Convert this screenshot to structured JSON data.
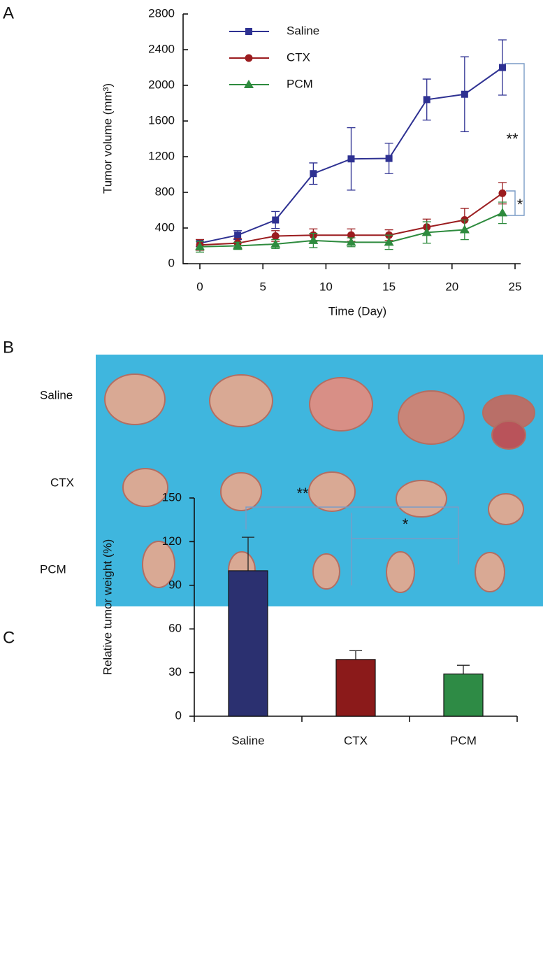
{
  "panel_labels": [
    "A",
    "B",
    "C"
  ],
  "photo": {
    "row_labels": [
      "Saline",
      "CTX",
      "PCM"
    ]
  },
  "chart_data": [
    {
      "type": "line",
      "xlabel": "Time (Day)",
      "ylabel": "Tumor volume (mm³)",
      "x": [
        0,
        3,
        6,
        9,
        12,
        15,
        18,
        21,
        24
      ],
      "series": [
        {
          "name": "Saline",
          "color": "#2e3192",
          "marker": "square",
          "values": [
            230,
            320,
            490,
            1010,
            1175,
            1180,
            1840,
            1900,
            2200
          ],
          "errors": [
            40,
            50,
            95,
            120,
            350,
            170,
            230,
            420,
            310
          ]
        },
        {
          "name": "CTX",
          "color": "#9b1c1f",
          "marker": "circle",
          "values": [
            210,
            230,
            310,
            320,
            320,
            320,
            410,
            490,
            790
          ],
          "errors": [
            60,
            50,
            60,
            70,
            70,
            60,
            90,
            130,
            120
          ]
        },
        {
          "name": "PCM",
          "color": "#2e8b3e",
          "marker": "triangle",
          "values": [
            190,
            200,
            220,
            260,
            240,
            240,
            350,
            380,
            570
          ],
          "errors": [
            60,
            40,
            50,
            80,
            50,
            80,
            120,
            110,
            120
          ]
        }
      ],
      "xlim": [
        0,
        25
      ],
      "xticks": [
        0,
        5,
        10,
        15,
        20,
        25
      ],
      "ylim": [
        0,
        2800
      ],
      "yticks": [
        0,
        400,
        800,
        1200,
        1600,
        2000,
        2400,
        2800
      ],
      "legend": "upper left",
      "annotations": [
        "**",
        "*"
      ]
    },
    {
      "type": "bar",
      "ylabel": "Relative tumor weight (%)",
      "categories": [
        "Saline",
        "CTX",
        "PCM"
      ],
      "values": [
        100,
        39,
        29
      ],
      "errors": [
        23,
        6,
        6
      ],
      "colors": [
        "#2b3070",
        "#8b1a1a",
        "#2e8b45"
      ],
      "ylim": [
        0,
        150
      ],
      "yticks": [
        0,
        30,
        60,
        90,
        120,
        150
      ],
      "annotations": [
        "**",
        "*"
      ]
    }
  ]
}
